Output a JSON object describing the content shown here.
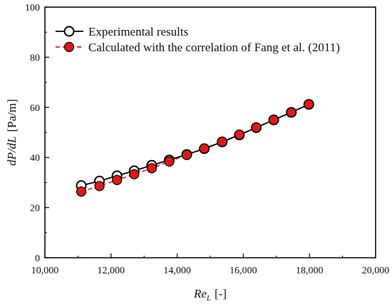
{
  "chart_data": {
    "type": "line",
    "title": "",
    "xlabel": {
      "main": "Re",
      "sub": "L",
      "unit": "[-]"
    },
    "ylabel": {
      "main": "dP/dL",
      "unit": "[Pa/m]"
    },
    "xlim": [
      10000,
      20000
    ],
    "ylim": [
      0,
      100
    ],
    "xticks": [
      10000,
      12000,
      14000,
      16000,
      18000,
      20000
    ],
    "xtick_labels": [
      "10,000",
      "12,000",
      "14,000",
      "16,000",
      "18,000",
      "20,000"
    ],
    "yticks": [
      0,
      20,
      40,
      60,
      80,
      100
    ],
    "ytick_labels": [
      "0",
      "20",
      "40",
      "60",
      "80",
      "100"
    ],
    "grid": false,
    "legend_position": "top-left",
    "series": [
      {
        "name": "Experimental results",
        "marker": "open-circle",
        "line": "solid",
        "color": "#000000",
        "fill": "#ffffff",
        "x": [
          11100,
          11650,
          12180,
          12700,
          13230,
          13760,
          14290,
          14820,
          15360,
          15880,
          16390,
          16920,
          17450,
          17980
        ],
        "y": [
          28.8,
          30.6,
          32.7,
          34.7,
          36.9,
          39.0,
          41.2,
          43.5,
          46.2,
          49.0,
          51.9,
          55.0,
          58.0,
          61.2
        ]
      },
      {
        "name": "Calculated with the correlation of Fang et al. (2011)",
        "marker": "filled-circle",
        "line": "dashed",
        "color": "#d42020",
        "fill": "#e01818",
        "x": [
          11100,
          11650,
          12180,
          12700,
          13230,
          13760,
          14290,
          14820,
          15360,
          15880,
          16390,
          16920,
          17450,
          17980
        ],
        "y": [
          26.4,
          28.6,
          31.0,
          33.3,
          35.7,
          38.4,
          41.0,
          43.6,
          46.3,
          49.1,
          52.0,
          55.0,
          58.0,
          61.2
        ]
      }
    ]
  }
}
